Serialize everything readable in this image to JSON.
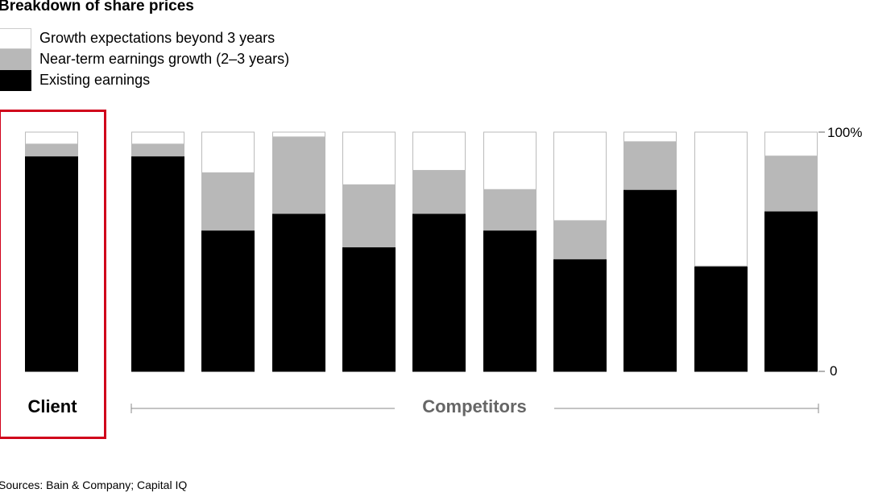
{
  "chart_data": {
    "type": "bar",
    "stacked": true,
    "title": "Breakdown of share prices",
    "ylim": [
      0,
      100
    ],
    "y_ticks": [
      "0",
      "100%"
    ],
    "grid": false,
    "legend_placement": "top-left",
    "groups": [
      {
        "label": "Client",
        "count": 1
      },
      {
        "label": "Competitors",
        "count": 10
      }
    ],
    "series": [
      {
        "name": "Existing earnings",
        "color": "#000000",
        "values": [
          90,
          90,
          59,
          66,
          52,
          66,
          59,
          47,
          76,
          44,
          67
        ]
      },
      {
        "name": "Near-term earnings growth (2–3 years)",
        "color": "#b8b8b8",
        "values": [
          5,
          5,
          24,
          32,
          26,
          18,
          17,
          16,
          20,
          0,
          23
        ]
      },
      {
        "name": "Growth expectations beyond 3 years",
        "color": "#ffffff",
        "values": [
          5,
          5,
          17,
          2,
          22,
          16,
          24,
          37,
          4,
          56,
          10
        ]
      }
    ],
    "highlight": {
      "group": "Client",
      "color": "#d0021b"
    }
  },
  "source": "Sources: Bain & Company; Capital IQ"
}
